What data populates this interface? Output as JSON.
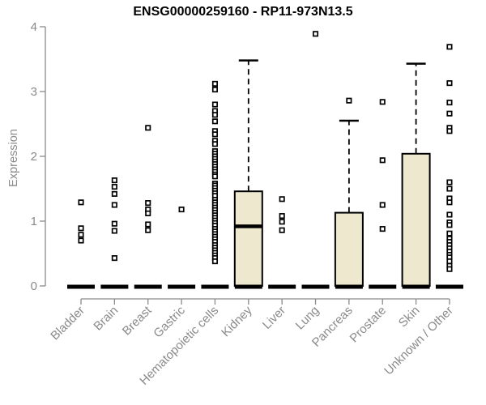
{
  "chart_data": {
    "type": "boxplot",
    "title": "ENSG00000259160 - RP11-973N13.5",
    "ylabel": "Expression",
    "ylim": [
      0,
      4
    ],
    "yticks": [
      0,
      1,
      2,
      3,
      4
    ],
    "grid": false,
    "categories": [
      "Bladder",
      "Brain",
      "Breast",
      "Gastric",
      "Hematopoietic cells",
      "Kidney",
      "Liver",
      "Lung",
      "Pancreas",
      "Prostate",
      "Skin",
      "Unknown / Other"
    ],
    "boxes": [
      {
        "category": "Bladder",
        "q1": 0,
        "median": 0,
        "q3": 0,
        "whisker_low": 0,
        "whisker_high": 0,
        "outliers": [
          1.29,
          0.89,
          0.79,
          0.7
        ]
      },
      {
        "category": "Brain",
        "q1": 0,
        "median": 0,
        "q3": 0,
        "whisker_low": 0,
        "whisker_high": 0,
        "outliers": [
          1.63,
          1.53,
          1.42,
          1.25,
          0.96,
          0.85,
          0.43
        ]
      },
      {
        "category": "Breast",
        "q1": 0,
        "median": 0,
        "q3": 0,
        "whisker_low": 0,
        "whisker_high": 0,
        "outliers": [
          2.44,
          1.28,
          1.18,
          1.12,
          0.95,
          0.86
        ]
      },
      {
        "category": "Gastric",
        "q1": 0,
        "median": 0,
        "q3": 0,
        "whisker_low": 0,
        "whisker_high": 0,
        "outliers": [
          1.18
        ]
      },
      {
        "category": "Hematopoietic cells",
        "q1": 0,
        "median": 0,
        "q3": 0,
        "whisker_low": 0,
        "whisker_high": 0,
        "outliers": [
          3.12,
          3.03,
          2.8,
          2.7,
          2.64,
          2.54,
          2.39,
          2.34,
          2.24,
          2.19,
          2.08,
          2.04,
          2.0,
          1.96,
          1.92,
          1.88,
          1.84,
          1.8,
          1.76,
          1.72,
          1.69,
          1.58,
          1.55,
          1.51,
          1.47,
          1.43,
          1.39,
          1.33,
          1.29,
          1.25,
          1.21,
          1.17,
          1.13,
          1.09,
          1.05,
          1.01,
          0.97,
          0.93,
          0.88,
          0.84,
          0.8,
          0.76,
          0.72,
          0.68,
          0.63,
          0.59,
          0.55,
          0.51,
          0.47,
          0.43,
          0.38
        ]
      },
      {
        "category": "Kidney",
        "q1": 0,
        "median": 0.92,
        "q3": 1.46,
        "whisker_low": 0,
        "whisker_high": 3.48,
        "outliers": []
      },
      {
        "category": "Liver",
        "q1": 0,
        "median": 0,
        "q3": 0,
        "whisker_low": 0,
        "whisker_high": 0,
        "outliers": [
          1.34,
          1.08,
          0.99,
          0.86
        ]
      },
      {
        "category": "Lung",
        "q1": 0,
        "median": 0,
        "q3": 0,
        "whisker_low": 0,
        "whisker_high": 0,
        "outliers": [
          3.89
        ]
      },
      {
        "category": "Pancreas",
        "q1": 0,
        "median": 0,
        "q3": 1.13,
        "whisker_low": 0,
        "whisker_high": 2.55,
        "outliers": [
          2.86
        ]
      },
      {
        "category": "Prostate",
        "q1": 0,
        "median": 0,
        "q3": 0,
        "whisker_low": 0,
        "whisker_high": 0,
        "outliers": [
          2.84,
          1.94,
          1.25,
          0.88
        ]
      },
      {
        "category": "Skin",
        "q1": 0,
        "median": 0,
        "q3": 2.04,
        "whisker_low": 0,
        "whisker_high": 3.43,
        "outliers": []
      },
      {
        "category": "Unknown / Other",
        "q1": 0,
        "median": 0,
        "q3": 0,
        "whisker_low": 0,
        "whisker_high": 0,
        "outliers": [
          3.69,
          3.13,
          2.83,
          2.66,
          2.44,
          2.39,
          1.6,
          1.5,
          1.35,
          1.29,
          1.1,
          0.98,
          0.94,
          0.81,
          0.73,
          0.68,
          0.63,
          0.58,
          0.53,
          0.48,
          0.44,
          0.38,
          0.31,
          0.26
        ]
      }
    ],
    "colors": {
      "box_fill": "#EDE8CE",
      "box_border": "#000000",
      "median": "#000000",
      "whisker": "#000000",
      "outlier": "#000000",
      "axis": "#8a8a8a",
      "tick_label": "#8a8a8a",
      "title": "#000000",
      "background": "#ffffff"
    },
    "legend": null
  }
}
